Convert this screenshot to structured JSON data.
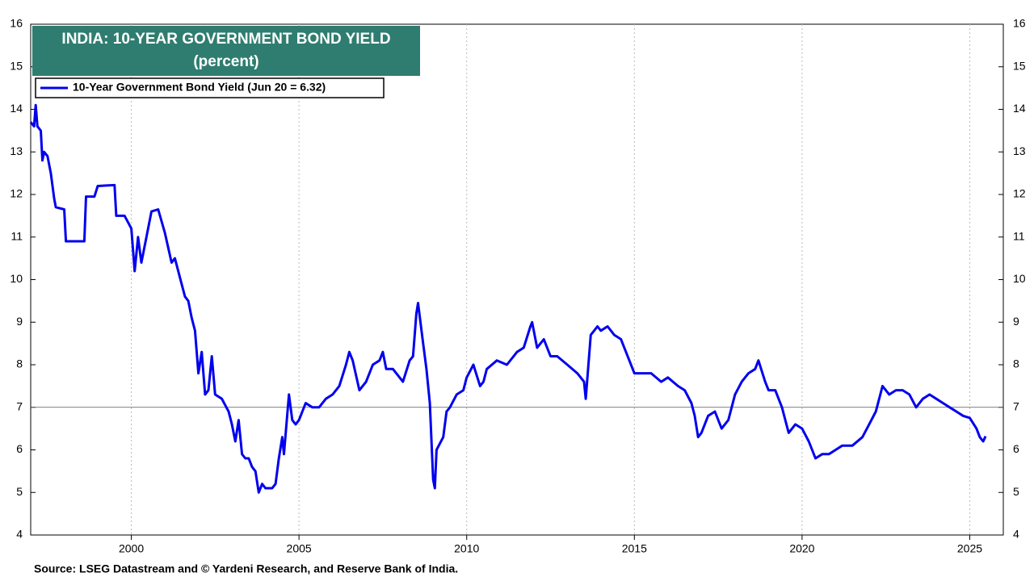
{
  "chart_data": {
    "type": "line",
    "title": "INDIA: 10-YEAR GOVERNMENT BOND YIELD",
    "subtitle": "(percent)",
    "source": "Source: LSEG Datastream and © Yardeni Research, and Reserve Bank of India.",
    "xlim": [
      1997,
      2026
    ],
    "xticks": [
      2000,
      2005,
      2010,
      2015,
      2020,
      2025
    ],
    "ylim": [
      4,
      16
    ],
    "yticks": [
      4,
      5,
      6,
      7,
      8,
      9,
      10,
      11,
      12,
      13,
      14,
      15,
      16
    ],
    "y2lim": [
      4,
      16
    ],
    "y2ticks": [
      4,
      5,
      6,
      7,
      8,
      9,
      10,
      11,
      12,
      13,
      14,
      15,
      16
    ],
    "reference_line": 7,
    "grid": true,
    "legend": "upper left",
    "x": [
      1997.0,
      1997.1,
      1997.15,
      1997.2,
      1997.3,
      1997.35,
      1997.4,
      1997.5,
      1997.6,
      1997.7,
      1997.75,
      1998.0,
      1998.05,
      1998.6,
      1998.65,
      1998.9,
      1999.0,
      1999.5,
      1999.55,
      1999.8,
      2000.0,
      2000.1,
      2000.2,
      2000.3,
      2000.4,
      2000.6,
      2000.8,
      2001.0,
      2001.2,
      2001.3,
      2001.5,
      2001.6,
      2001.7,
      2001.8,
      2001.9,
      2002.0,
      2002.1,
      2002.2,
      2002.3,
      2002.4,
      2002.5,
      2002.7,
      2002.9,
      2003.0,
      2003.1,
      2003.2,
      2003.3,
      2003.4,
      2003.5,
      2003.6,
      2003.7,
      2003.8,
      2003.9,
      2004.0,
      2004.2,
      2004.3,
      2004.4,
      2004.5,
      2004.55,
      2004.7,
      2004.8,
      2004.9,
      2005.0,
      2005.2,
      2005.4,
      2005.6,
      2005.8,
      2006.0,
      2006.2,
      2006.4,
      2006.5,
      2006.6,
      2006.8,
      2007.0,
      2007.2,
      2007.4,
      2007.5,
      2007.6,
      2007.8,
      2008.0,
      2008.1,
      2008.3,
      2008.4,
      2008.5,
      2008.55,
      2008.7,
      2008.8,
      2008.9,
      2009.0,
      2009.05,
      2009.1,
      2009.3,
      2009.4,
      2009.5,
      2009.7,
      2009.9,
      2010.0,
      2010.2,
      2010.4,
      2010.5,
      2010.6,
      2010.9,
      2011.2,
      2011.5,
      2011.7,
      2011.9,
      2011.95,
      2012.1,
      2012.3,
      2012.5,
      2012.7,
      2013.0,
      2013.3,
      2013.5,
      2013.55,
      2013.7,
      2013.8,
      2013.9,
      2014.0,
      2014.2,
      2014.4,
      2014.6,
      2014.8,
      2015.0,
      2015.3,
      2015.5,
      2015.8,
      2016.0,
      2016.3,
      2016.5,
      2016.7,
      2016.8,
      2016.9,
      2017.0,
      2017.2,
      2017.4,
      2017.6,
      2017.8,
      2018.0,
      2018.2,
      2018.4,
      2018.6,
      2018.7,
      2018.9,
      2019.0,
      2019.2,
      2019.4,
      2019.6,
      2019.8,
      2020.0,
      2020.2,
      2020.4,
      2020.6,
      2020.8,
      2021.0,
      2021.2,
      2021.5,
      2021.8,
      2022.0,
      2022.2,
      2022.4,
      2022.6,
      2022.8,
      2023.0,
      2023.2,
      2023.4,
      2023.6,
      2023.8,
      2024.0,
      2024.2,
      2024.4,
      2024.6,
      2024.8,
      2025.0,
      2025.2,
      2025.3,
      2025.4,
      2025.47
    ],
    "series": [
      {
        "name": "10-Year Government Bond Yield (Jun 20 = 6.32)",
        "color": "#0000ee",
        "values": [
          13.7,
          13.6,
          14.1,
          13.6,
          13.5,
          12.8,
          13.0,
          12.9,
          12.5,
          11.9,
          11.7,
          11.65,
          10.9,
          10.9,
          11.95,
          11.95,
          12.2,
          12.22,
          11.5,
          11.5,
          11.2,
          10.2,
          11.0,
          10.4,
          10.8,
          11.6,
          11.65,
          11.1,
          10.4,
          10.5,
          9.9,
          9.6,
          9.5,
          9.1,
          8.8,
          7.8,
          8.3,
          7.3,
          7.4,
          8.2,
          7.3,
          7.2,
          6.9,
          6.6,
          6.2,
          6.7,
          5.9,
          5.8,
          5.8,
          5.6,
          5.5,
          5.0,
          5.2,
          5.1,
          5.1,
          5.2,
          5.8,
          6.3,
          5.9,
          7.3,
          6.7,
          6.6,
          6.7,
          7.1,
          7.0,
          7.0,
          7.2,
          7.3,
          7.5,
          8.0,
          8.3,
          8.1,
          7.4,
          7.6,
          8.0,
          8.1,
          8.3,
          7.9,
          7.9,
          7.7,
          7.6,
          8.1,
          8.2,
          9.2,
          9.45,
          8.5,
          7.9,
          7.1,
          5.3,
          5.1,
          6.0,
          6.3,
          6.9,
          7.0,
          7.3,
          7.4,
          7.7,
          8.0,
          7.5,
          7.6,
          7.9,
          8.1,
          8.0,
          8.3,
          8.4,
          8.9,
          9.0,
          8.4,
          8.6,
          8.2,
          8.2,
          8.0,
          7.8,
          7.6,
          7.2,
          8.7,
          8.8,
          8.9,
          8.8,
          8.9,
          8.7,
          8.6,
          8.2,
          7.8,
          7.8,
          7.8,
          7.6,
          7.7,
          7.5,
          7.4,
          7.1,
          6.8,
          6.3,
          6.4,
          6.8,
          6.9,
          6.5,
          6.7,
          7.3,
          7.6,
          7.8,
          7.9,
          8.1,
          7.6,
          7.4,
          7.4,
          7.0,
          6.4,
          6.6,
          6.5,
          6.2,
          5.8,
          5.9,
          5.9,
          6.0,
          6.1,
          6.1,
          6.3,
          6.6,
          6.9,
          7.5,
          7.3,
          7.4,
          7.4,
          7.3,
          7.0,
          7.2,
          7.3,
          7.2,
          7.1,
          7.0,
          6.9,
          6.8,
          6.75,
          6.5,
          6.3,
          6.2,
          6.32
        ]
      }
    ]
  }
}
